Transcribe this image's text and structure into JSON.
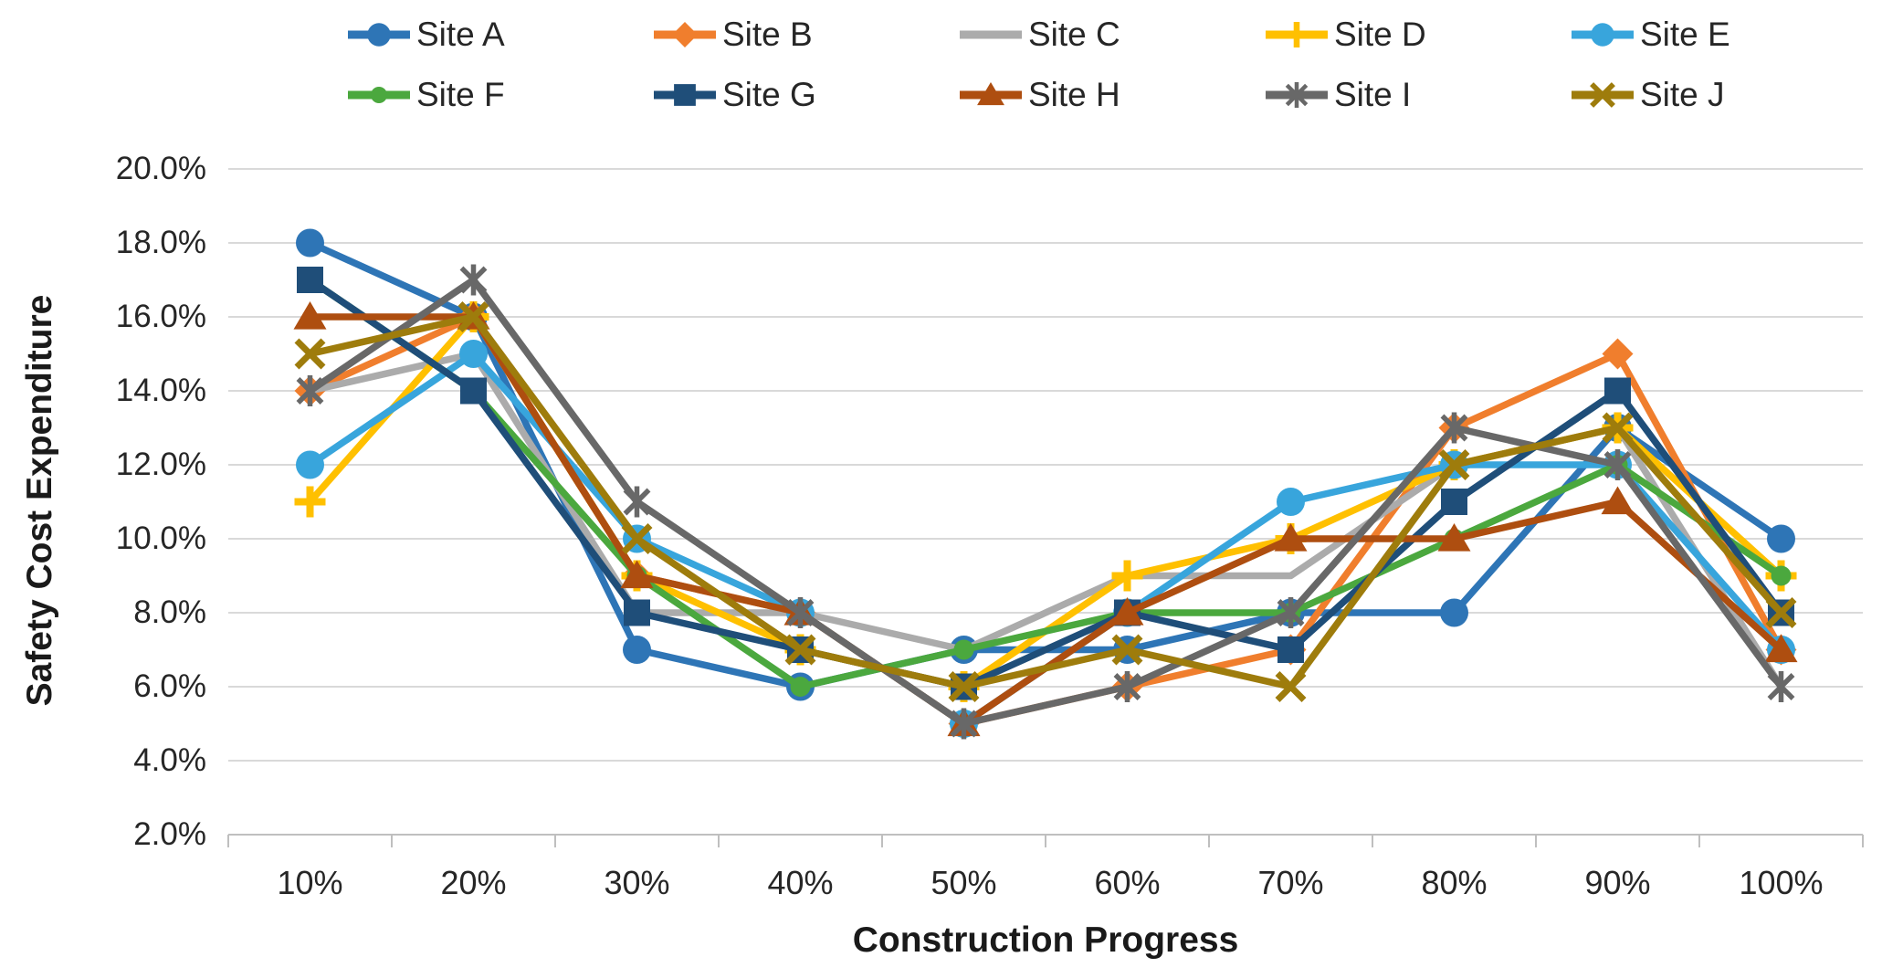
{
  "chart_data": {
    "type": "line",
    "title": "",
    "xlabel": "Construction Progress",
    "ylabel": "Safety Cost Expenditure",
    "categories": [
      "10%",
      "20%",
      "30%",
      "40%",
      "50%",
      "60%",
      "70%",
      "80%",
      "90%",
      "100%"
    ],
    "y_axis": {
      "min": 2.0,
      "max": 20.0,
      "step": 2.0,
      "tick_labels": [
        "2.0%",
        "4.0%",
        "6.0%",
        "8.0%",
        "10.0%",
        "12.0%",
        "14.0%",
        "16.0%",
        "18.0%",
        "20.0%"
      ]
    },
    "grid": "horizontal",
    "legend_position": "top",
    "axis_colors": {
      "gridline": "#D9D9D9",
      "axis_line": "#BFBFBF"
    },
    "series": [
      {
        "name": "Site A",
        "color": "#2E75B6",
        "marker": "circle",
        "values_pct": [
          18,
          16,
          7,
          6,
          7,
          7,
          8,
          8,
          13,
          10
        ]
      },
      {
        "name": "Site B",
        "color": "#F07E2D",
        "marker": "diamond",
        "values_pct": [
          14,
          16,
          9,
          8,
          5,
          6,
          7,
          13,
          15,
          7
        ]
      },
      {
        "name": "Site C",
        "color": "#ABABAB",
        "marker": "none",
        "values_pct": [
          14,
          15,
          8,
          8,
          7,
          9,
          9,
          12,
          13,
          6
        ]
      },
      {
        "name": "Site D",
        "color": "#FFC000",
        "marker": "plus",
        "values_pct": [
          11,
          16,
          9,
          7,
          6,
          9,
          10,
          12,
          13,
          9
        ]
      },
      {
        "name": "Site E",
        "color": "#38A5DC",
        "marker": "circle",
        "values_pct": [
          12,
          15,
          10,
          8,
          5,
          8,
          11,
          12,
          12,
          7
        ]
      },
      {
        "name": "Site F",
        "color": "#4BA83E",
        "marker": "circle",
        "marker_size": "small",
        "values_pct": [
          17,
          14,
          9,
          6,
          7,
          8,
          8,
          10,
          12,
          9
        ]
      },
      {
        "name": "Site G",
        "color": "#1F4E79",
        "marker": "square",
        "values_pct": [
          17,
          14,
          8,
          7,
          6,
          8,
          7,
          11,
          14,
          8
        ]
      },
      {
        "name": "Site H",
        "color": "#AE4E10",
        "marker": "triangle",
        "values_pct": [
          16,
          16,
          9,
          8,
          5,
          8,
          10,
          10,
          11,
          7
        ]
      },
      {
        "name": "Site I",
        "color": "#686868",
        "marker": "asterisk",
        "values_pct": [
          14,
          17,
          11,
          8,
          5,
          6,
          8,
          13,
          12,
          6
        ]
      },
      {
        "name": "Site J",
        "color": "#9E7C0C",
        "marker": "x",
        "values_pct": [
          15,
          16,
          10,
          7,
          6,
          7,
          6,
          12,
          13,
          8
        ]
      }
    ]
  }
}
